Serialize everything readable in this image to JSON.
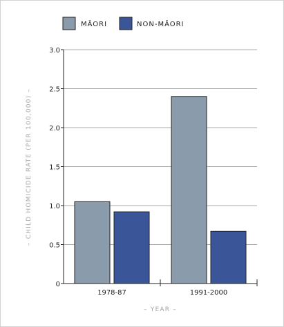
{
  "chart_data": {
    "type": "bar",
    "categories": [
      "1978-87",
      "1991-2000"
    ],
    "series": [
      {
        "name": "MĀORI",
        "values": [
          1.05,
          2.4
        ],
        "color": "#8a9bab"
      },
      {
        "name": "NON-MĀORI",
        "values": [
          0.92,
          0.67
        ],
        "color": "#3a5698"
      }
    ],
    "yticks": [
      "0",
      "0.5",
      "1.0",
      "1.5",
      "2.0",
      "2.5",
      "3.0"
    ],
    "ylim": [
      0,
      3
    ],
    "xlabel": "– YEAR –",
    "ylabel": "– CHILD HOMICIDE RATE (PER 100,000) –",
    "grid": true,
    "legend_position": "top-left"
  }
}
